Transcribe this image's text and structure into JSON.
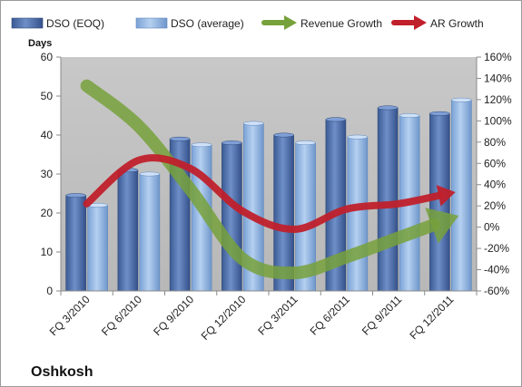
{
  "chart_data": {
    "type": "bar",
    "title": "",
    "caption": "Oshkosh",
    "ylabel": "Days",
    "categories": [
      "FQ 3/2010",
      "FQ 6/2010",
      "FQ 9/2010",
      "FQ 12/2010",
      "FQ 3/2011",
      "FQ 6/2011",
      "FQ 9/2011",
      "FQ 12/2011"
    ],
    "ylim": [
      0,
      60
    ],
    "yticks": [
      0,
      10,
      20,
      30,
      40,
      50,
      60
    ],
    "y2lim": [
      -60,
      160
    ],
    "y2ticks": [
      "-60%",
      "-40%",
      "-20%",
      "0%",
      "20%",
      "40%",
      "60%",
      "80%",
      "100%",
      "120%",
      "140%",
      "160%"
    ],
    "y2tick_values": [
      -60,
      -40,
      -20,
      0,
      20,
      40,
      60,
      80,
      100,
      120,
      140,
      160
    ],
    "series": [
      {
        "name": "DSO (EOQ)",
        "type": "bar",
        "color": "#4a6aa5",
        "values": [
          24.5,
          31,
          39,
          38,
          40,
          44,
          47,
          45.5
        ]
      },
      {
        "name": "DSO (average)",
        "type": "bar",
        "color": "#8fb4e3",
        "values": [
          22,
          30,
          37.5,
          43,
          38,
          39.5,
          45,
          49
        ]
      },
      {
        "name": "Revenue Growth",
        "type": "arrow-line",
        "axis": "right",
        "color": "#77a13b",
        "values": [
          133,
          95,
          35,
          -30,
          -43,
          -28,
          -10,
          8
        ]
      },
      {
        "name": "AR Growth",
        "type": "arrow-line",
        "axis": "right",
        "color": "#c0202b",
        "values": [
          22,
          63,
          55,
          15,
          -2,
          17,
          22,
          32
        ]
      }
    ],
    "grid": false,
    "plot_background": "#c0c0c0",
    "legend_position": "top"
  }
}
